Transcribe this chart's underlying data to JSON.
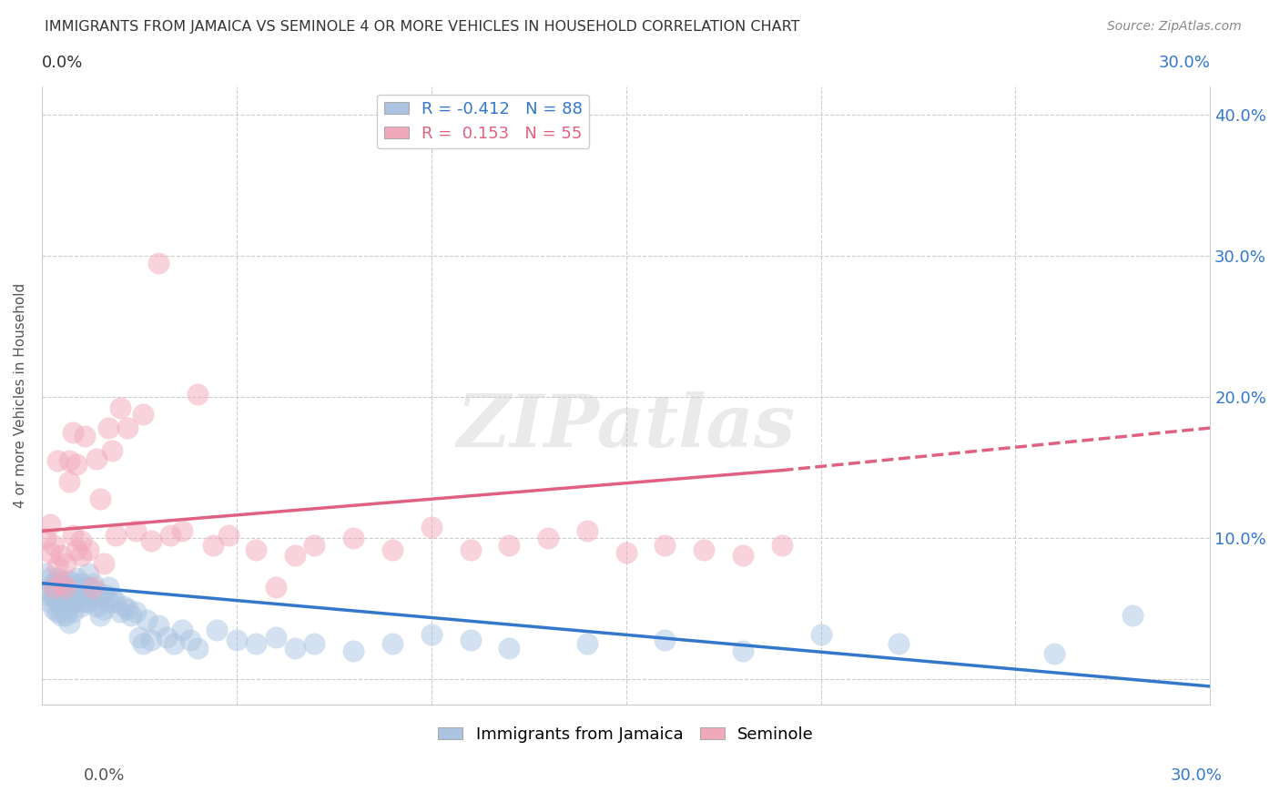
{
  "title": "IMMIGRANTS FROM JAMAICA VS SEMINOLE 4 OR MORE VEHICLES IN HOUSEHOLD CORRELATION CHART",
  "source": "Source: ZipAtlas.com",
  "ylabel": "4 or more Vehicles in Household",
  "xmin": 0.0,
  "xmax": 0.3,
  "ymin": -0.018,
  "ymax": 0.42,
  "yticks": [
    0.0,
    0.1,
    0.2,
    0.3,
    0.4
  ],
  "ytick_labels_right": [
    "",
    "10.0%",
    "20.0%",
    "30.0%",
    "40.0%"
  ],
  "blue_R": -0.412,
  "blue_N": 88,
  "pink_R": 0.153,
  "pink_N": 55,
  "blue_color": "#aac4e2",
  "pink_color": "#f2a8bb",
  "blue_line_color": "#3377cc",
  "pink_line_color": "#e06080",
  "watermark_text": "ZIPatlas",
  "legend_label_blue": "Immigrants from Jamaica",
  "legend_label_pink": "Seminole",
  "blue_points_x": [
    0.001,
    0.001,
    0.002,
    0.002,
    0.002,
    0.003,
    0.003,
    0.003,
    0.003,
    0.004,
    0.004,
    0.004,
    0.004,
    0.004,
    0.005,
    0.005,
    0.005,
    0.005,
    0.005,
    0.006,
    0.006,
    0.006,
    0.006,
    0.007,
    0.007,
    0.007,
    0.007,
    0.007,
    0.008,
    0.008,
    0.008,
    0.008,
    0.009,
    0.009,
    0.009,
    0.01,
    0.01,
    0.01,
    0.011,
    0.011,
    0.012,
    0.012,
    0.012,
    0.013,
    0.013,
    0.014,
    0.014,
    0.015,
    0.015,
    0.016,
    0.016,
    0.017,
    0.017,
    0.018,
    0.019,
    0.02,
    0.021,
    0.022,
    0.023,
    0.024,
    0.025,
    0.026,
    0.027,
    0.028,
    0.03,
    0.032,
    0.034,
    0.036,
    0.038,
    0.04,
    0.045,
    0.05,
    0.055,
    0.06,
    0.065,
    0.07,
    0.08,
    0.09,
    0.1,
    0.11,
    0.12,
    0.14,
    0.16,
    0.18,
    0.2,
    0.22,
    0.26,
    0.28
  ],
  "blue_points_y": [
    0.06,
    0.075,
    0.062,
    0.072,
    0.055,
    0.068,
    0.065,
    0.058,
    0.05,
    0.072,
    0.065,
    0.06,
    0.055,
    0.048,
    0.07,
    0.062,
    0.058,
    0.052,
    0.045,
    0.065,
    0.058,
    0.052,
    0.045,
    0.07,
    0.062,
    0.058,
    0.052,
    0.04,
    0.068,
    0.062,
    0.055,
    0.048,
    0.072,
    0.065,
    0.055,
    0.068,
    0.06,
    0.052,
    0.065,
    0.055,
    0.075,
    0.065,
    0.055,
    0.068,
    0.058,
    0.062,
    0.052,
    0.058,
    0.045,
    0.06,
    0.05,
    0.065,
    0.055,
    0.058,
    0.055,
    0.048,
    0.052,
    0.05,
    0.045,
    0.048,
    0.03,
    0.025,
    0.042,
    0.028,
    0.038,
    0.03,
    0.025,
    0.035,
    0.028,
    0.022,
    0.035,
    0.028,
    0.025,
    0.03,
    0.022,
    0.025,
    0.02,
    0.025,
    0.032,
    0.028,
    0.022,
    0.025,
    0.028,
    0.02,
    0.032,
    0.025,
    0.018,
    0.045
  ],
  "pink_points_x": [
    0.001,
    0.002,
    0.002,
    0.003,
    0.003,
    0.004,
    0.004,
    0.005,
    0.005,
    0.006,
    0.006,
    0.007,
    0.007,
    0.008,
    0.008,
    0.009,
    0.009,
    0.01,
    0.01,
    0.011,
    0.012,
    0.013,
    0.014,
    0.015,
    0.016,
    0.017,
    0.018,
    0.019,
    0.02,
    0.022,
    0.024,
    0.026,
    0.028,
    0.03,
    0.033,
    0.036,
    0.04,
    0.044,
    0.048,
    0.055,
    0.06,
    0.065,
    0.07,
    0.08,
    0.09,
    0.1,
    0.11,
    0.12,
    0.13,
    0.14,
    0.15,
    0.16,
    0.17,
    0.18,
    0.19
  ],
  "pink_points_y": [
    0.1,
    0.09,
    0.11,
    0.065,
    0.095,
    0.155,
    0.08,
    0.068,
    0.088,
    0.082,
    0.065,
    0.155,
    0.14,
    0.102,
    0.175,
    0.092,
    0.152,
    0.098,
    0.088,
    0.172,
    0.092,
    0.065,
    0.156,
    0.128,
    0.082,
    0.178,
    0.162,
    0.102,
    0.192,
    0.178,
    0.105,
    0.188,
    0.098,
    0.295,
    0.102,
    0.105,
    0.202,
    0.095,
    0.102,
    0.092,
    0.065,
    0.088,
    0.095,
    0.1,
    0.092,
    0.108,
    0.092,
    0.095,
    0.1,
    0.105,
    0.09,
    0.095,
    0.092,
    0.088,
    0.095
  ],
  "blue_line_x": [
    0.0,
    0.3
  ],
  "blue_line_y_start": 0.068,
  "blue_line_y_end": -0.005,
  "pink_line_x_solid_end": 0.19,
  "pink_line_y_start": 0.105,
  "pink_line_y_at_solid_end": 0.148,
  "pink_line_y_end": 0.178
}
